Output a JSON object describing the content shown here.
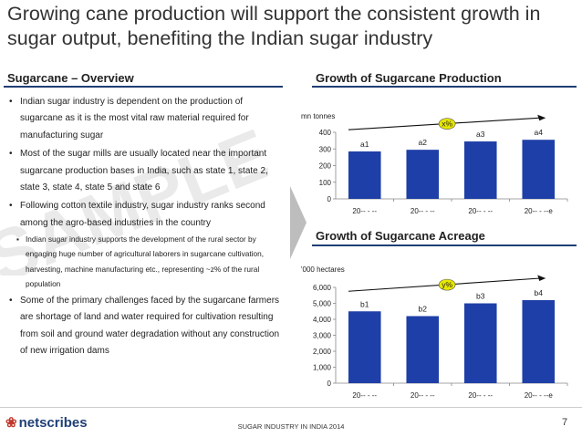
{
  "title": "Growing cane production will support the consistent growth in sugar output, benefiting the Indian sugar industry",
  "left_section": {
    "heading": "Sugarcane – Overview",
    "bullets": [
      "Indian sugar industry is dependent on the production of sugarcane as it is the most vital raw material required for manufacturing sugar",
      "Most of the sugar mills are usually located near the important sugarcane production bases in India, such as state 1, state 2, state 3, state 4, state  5 and state 6",
      "Following cotton textile industry, sugar industry ranks second among the agro-based industries in the country",
      "Some of the primary challenges faced by the sugarcane farmers are shortage of land and water required for cultivation resulting from soil and ground water degradation without any construction of new irrigation dams"
    ],
    "sub_bullet": "Indian sugar industry supports the development of the rural sector by engaging huge number of agricultural laborers in sugarcane cultivation, harvesting, machine manufacturing etc., representing ~z% of the rural population",
    "bullet_symbol": "•",
    "sub_bullet_symbol": "▪"
  },
  "watermark_text": "SAMPLE",
  "chart_data": [
    {
      "type": "bar",
      "title": "Growth of Sugarcane Production",
      "ylabel": "mn tonnes",
      "categories": [
        "20-- - --",
        "20-- - --",
        "20-- - --",
        "20-- - --e"
      ],
      "values": [
        285,
        295,
        345,
        355
      ],
      "data_labels": [
        "a1",
        "a2",
        "a3",
        "a4"
      ],
      "yticks": [
        0,
        100,
        200,
        300,
        400
      ],
      "ytick_labels": [
        "0",
        "100",
        "200",
        "300",
        "400"
      ],
      "ylim": [
        0,
        400
      ],
      "cagr_label": "x%",
      "bar_color": "#1f3fa8"
    },
    {
      "type": "bar",
      "title": "Growth of Sugarcane Acreage",
      "ylabel": "'000 hectares",
      "categories": [
        "20-- - --",
        "20-- - --",
        "20-- - --",
        "20-- - --e"
      ],
      "values": [
        4500,
        4200,
        5000,
        5200
      ],
      "data_labels": [
        "b1",
        "b2",
        "b3",
        "b4"
      ],
      "yticks": [
        0,
        1000,
        2000,
        3000,
        4000,
        5000,
        6000
      ],
      "ytick_labels": [
        "0",
        "1,000",
        "2,000",
        "3,000",
        "4,000",
        "5,000",
        "6,000"
      ],
      "ylim": [
        0,
        6000
      ],
      "cagr_label": "y%",
      "bar_color": "#1f3fa8"
    }
  ],
  "footer": {
    "logo": "netscribes",
    "center_text": "SUGAR INDUSTRY IN INDIA 2014",
    "page_number": "7"
  }
}
